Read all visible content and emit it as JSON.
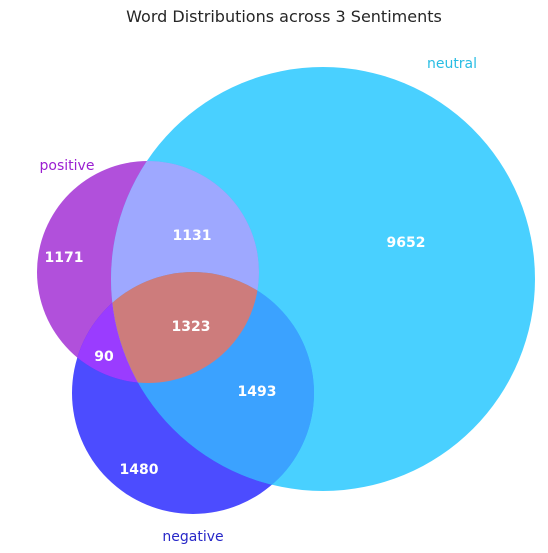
{
  "title": "Word Distributions across 3 Sentiments",
  "sets": {
    "positive": {
      "label": "positive",
      "color": "#9b1fd1",
      "label_color": "#9b1fd1"
    },
    "neutral": {
      "label": "neutral",
      "color": "#1cc4ff",
      "label_color": "#28bde3"
    },
    "negative": {
      "label": "negative",
      "color": "#1f1fff",
      "label_color": "#2727c8"
    }
  },
  "regions": {
    "positive_only": "1171",
    "neutral_only": "9652",
    "negative_only": "1480",
    "positive_neutral": "1131",
    "positive_negative": "90",
    "neutral_negative": "1493",
    "all_three": "1323"
  }
}
